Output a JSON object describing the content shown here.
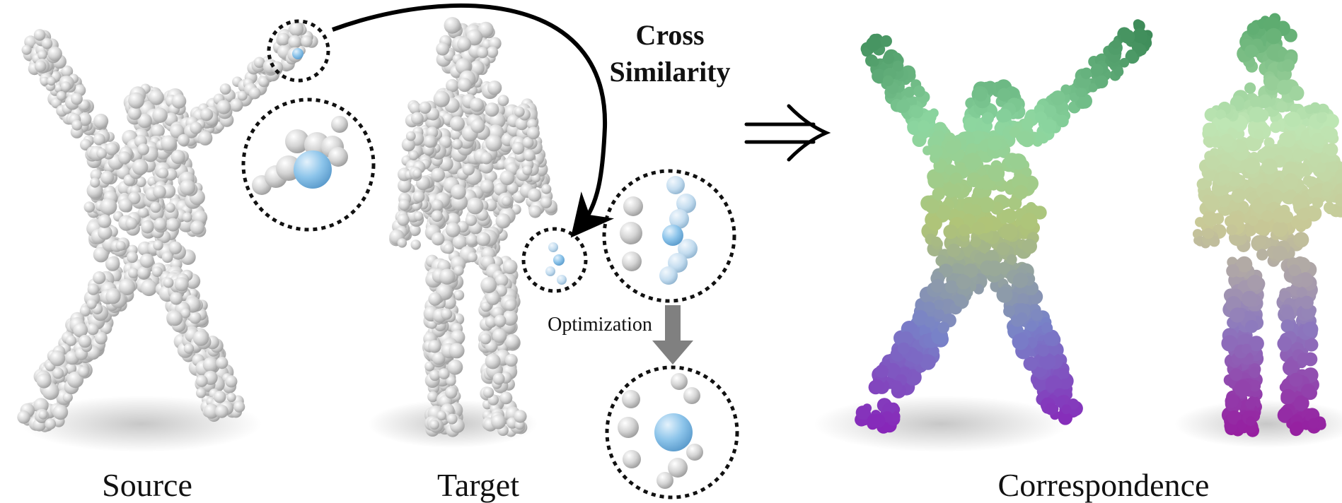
{
  "labels": {
    "source": "Source",
    "target": "Target",
    "correspondence": "Correspondence",
    "cross_line1": "Cross",
    "cross_line2": "Similarity",
    "optimization": "Optimization"
  },
  "icons": {
    "implies": "double-right-arrow-icon",
    "down_arrow": "down-arrow-icon",
    "curved_arrow": "curved-arrow-icon"
  },
  "colors": {
    "point_gray": "#c8c8c8",
    "point_dark": "#9e9e9e",
    "highlight_blue": "#7fb8e0",
    "arrow_gray": "#808080",
    "text": "#111111"
  }
}
